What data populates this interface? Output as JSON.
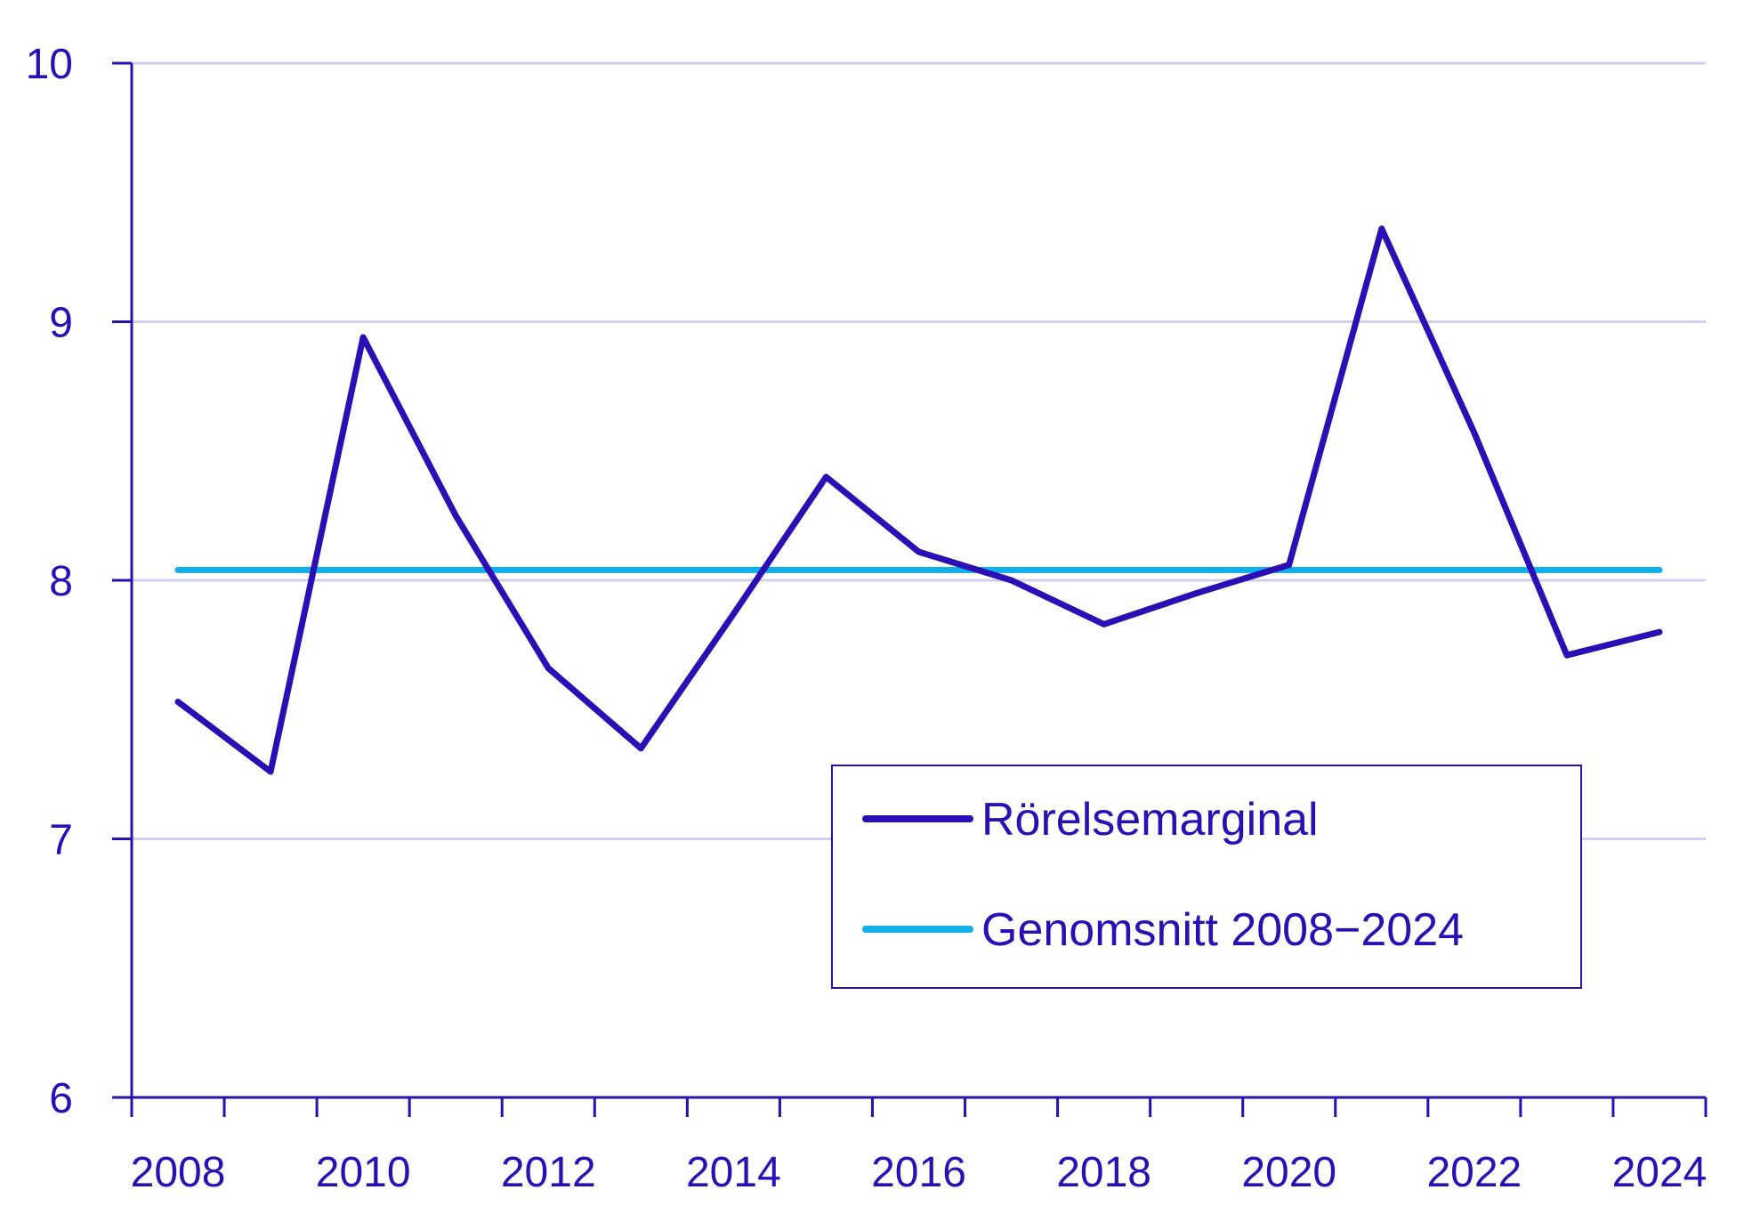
{
  "chart_data": {
    "type": "line",
    "x": [
      2008,
      2009,
      2010,
      2011,
      2012,
      2013,
      2014,
      2015,
      2016,
      2017,
      2018,
      2019,
      2020,
      2021,
      2022,
      2023,
      2024
    ],
    "series": [
      {
        "name": "Rörelsemarginal",
        "color": "#2b0fb5",
        "values": [
          7.53,
          7.26,
          8.94,
          8.25,
          7.66,
          7.35,
          7.87,
          8.4,
          8.11,
          8.0,
          7.83,
          7.95,
          8.06,
          9.36,
          8.57,
          7.71,
          7.8
        ]
      },
      {
        "name": "Genomsnitt 2008−2024",
        "color": "#11aee8",
        "values": [
          8.04,
          8.04,
          8.04,
          8.04,
          8.04,
          8.04,
          8.04,
          8.04,
          8.04,
          8.04,
          8.04,
          8.04,
          8.04,
          8.04,
          8.04,
          8.04,
          8.04
        ]
      }
    ],
    "xticks": [
      "2008",
      "2010",
      "2012",
      "2014",
      "2016",
      "2018",
      "2020",
      "2022",
      "2024"
    ],
    "yticks": [
      "6",
      "7",
      "8",
      "9",
      "10"
    ],
    "ylim": [
      6,
      10
    ],
    "xlim": [
      2007.5,
      2024.5
    ],
    "grid": true,
    "legend_position": "bottom-right",
    "axis_color": "#2b0fb5",
    "grid_color": "#d0d0ee"
  }
}
